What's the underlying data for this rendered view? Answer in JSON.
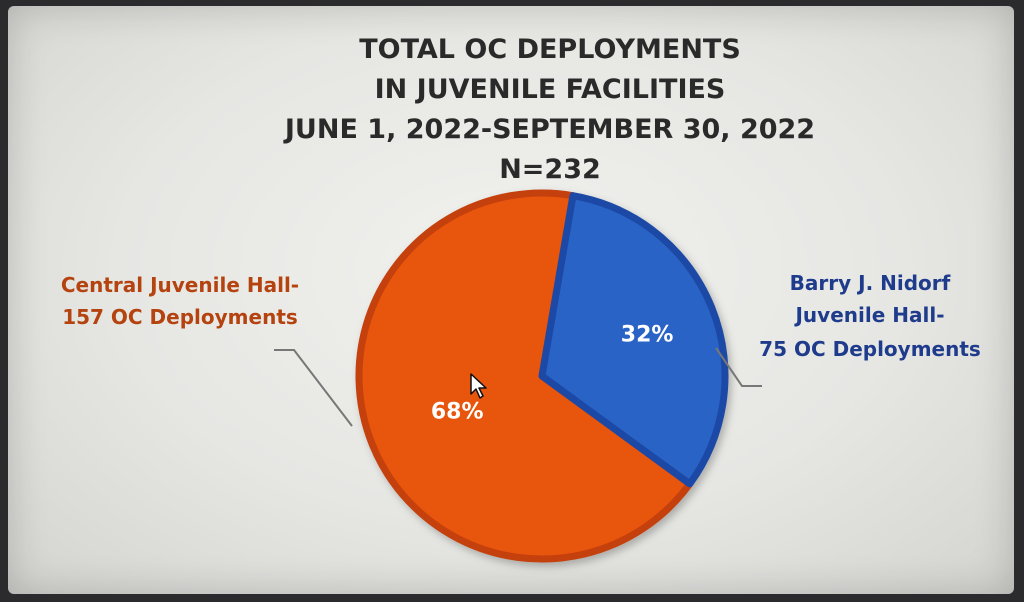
{
  "chart_data": {
    "type": "pie",
    "title": [
      "TOTAL OC DEPLOYMENTS",
      "IN JUVENILE FACILITIES",
      "JUNE 1, 2022-SEPTEMBER 30, 2022",
      "N=232"
    ],
    "total": 232,
    "slices": [
      {
        "label_lines": [
          "Central Juvenile Hall-",
          "157 OC Deployments"
        ],
        "value": 157,
        "percent_label": "68%",
        "color": "#e8540f",
        "edge_color": "#c43f0a",
        "text_color": "#b5430f"
      },
      {
        "label_lines": [
          "Barry J. Nidorf",
          "Juvenile Hall-",
          "75 OC Deployments"
        ],
        "value": 75,
        "percent_label": "32%",
        "color": "#2a63c6",
        "edge_color": "#1c4aa6",
        "text_color": "#1f3c8c"
      }
    ]
  },
  "cursor_icon": "mouse-pointer-icon"
}
